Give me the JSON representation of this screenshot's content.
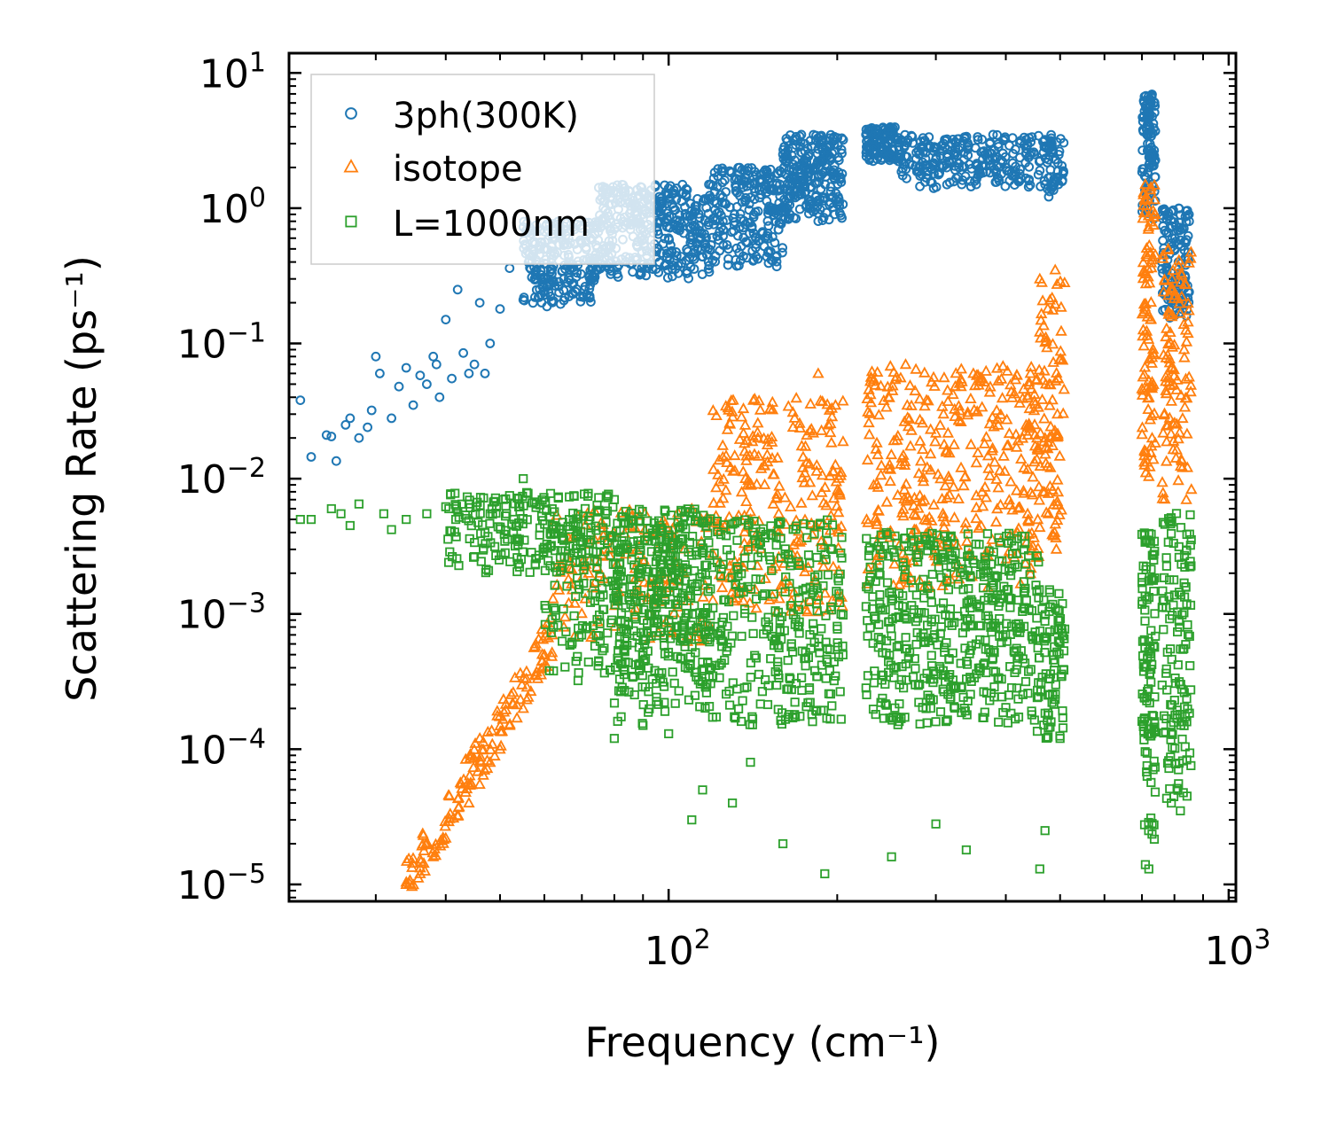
{
  "chart_data": {
    "type": "scatter",
    "title": "",
    "xlabel": "Frequency (cm⁻¹)",
    "ylabel": "Scattering Rate (ps⁻¹)",
    "xscale": "log",
    "yscale": "log",
    "xlim": [
      21,
      1030
    ],
    "ylim": [
      7.5e-06,
      14
    ],
    "x_ticks": [
      {
        "value": 100,
        "base": "10",
        "exp": "2"
      },
      {
        "value": 1000,
        "base": "10",
        "exp": "3"
      }
    ],
    "y_ticks": [
      {
        "value": 10,
        "base": "10",
        "exp": "1"
      },
      {
        "value": 1,
        "base": "10",
        "exp": "0"
      },
      {
        "value": 0.1,
        "base": "10",
        "exp": "−1"
      },
      {
        "value": 0.01,
        "base": "10",
        "exp": "−2"
      },
      {
        "value": 0.001,
        "base": "10",
        "exp": "−3"
      },
      {
        "value": 0.0001,
        "base": "10",
        "exp": "−4"
      },
      {
        "value": 1e-05,
        "base": "10",
        "exp": "−5"
      }
    ],
    "legend_position": "top-left",
    "series": [
      {
        "name": "3ph(300K)",
        "marker": "circle",
        "color": "#1f77b4",
        "points": [
          [
            22,
            0.038
          ],
          [
            23,
            0.0145
          ],
          [
            24.5,
            0.021
          ],
          [
            25,
            0.0205
          ],
          [
            25.5,
            0.0135
          ],
          [
            26.5,
            0.025
          ],
          [
            27,
            0.028
          ],
          [
            28,
            0.02
          ],
          [
            29,
            0.024
          ],
          [
            29.5,
            0.032
          ],
          [
            30,
            0.08
          ],
          [
            30.5,
            0.06
          ],
          [
            32,
            0.028
          ],
          [
            33,
            0.048
          ],
          [
            34,
            0.066
          ],
          [
            35,
            0.035
          ],
          [
            36,
            0.058
          ],
          [
            37,
            0.05
          ],
          [
            38,
            0.08
          ],
          [
            38.5,
            0.07
          ],
          [
            39,
            0.04
          ],
          [
            40,
            0.15
          ],
          [
            41,
            0.055
          ],
          [
            42,
            0.25
          ],
          [
            43,
            0.085
          ],
          [
            44,
            0.06
          ],
          [
            45,
            0.07
          ],
          [
            46,
            0.2
          ],
          [
            47,
            0.06
          ],
          [
            48,
            0.1
          ],
          [
            50,
            0.18
          ],
          [
            52,
            0.36
          ],
          [
            55,
            0.21
          ],
          [
            58,
            0.32
          ],
          [
            62,
            0.48
          ],
          [
            65,
            0.3
          ],
          [
            70,
            0.55
          ],
          [
            75,
            0.8
          ],
          [
            82,
            1.1
          ],
          [
            90,
            0.9
          ],
          [
            100,
            0.6
          ],
          [
            112,
            0.55
          ],
          [
            125,
            0.8
          ],
          [
            140,
            1.2
          ],
          [
            150,
            1.8
          ],
          [
            160,
            2.5
          ],
          [
            175,
            3
          ],
          [
            190,
            1.2
          ],
          [
            205,
            3.2
          ],
          [
            225,
            3.5
          ],
          [
            240,
            2.8
          ],
          [
            260,
            3.2
          ],
          [
            280,
            2.5
          ],
          [
            300,
            2.3
          ],
          [
            330,
            2
          ],
          [
            360,
            1.8
          ],
          [
            400,
            2
          ],
          [
            450,
            2.5
          ],
          [
            470,
            1.5
          ],
          [
            720,
            5
          ],
          [
            730,
            1.5
          ],
          [
            760,
            0.4
          ],
          [
            800,
            0.5
          ],
          [
            850,
            0.8
          ]
        ],
        "bands": [
          {
            "x": [
              55,
              75
            ],
            "y": [
              0.18,
              0.8
            ],
            "count": 240
          },
          {
            "x": [
              75,
              120
            ],
            "y": [
              0.3,
              1.5
            ],
            "count": 380
          },
          {
            "x": [
              120,
              160
            ],
            "y": [
              0.35,
              2.0
            ],
            "count": 220
          },
          {
            "x": [
              160,
              205
            ],
            "y": [
              0.8,
              3.5
            ],
            "count": 240
          },
          {
            "x": [
              225,
              260
            ],
            "y": [
              2.2,
              4.0
            ],
            "count": 120
          },
          {
            "x": [
              260,
              450
            ],
            "y": [
              1.4,
              3.5
            ],
            "count": 240
          },
          {
            "x": [
              455,
              510
            ],
            "y": [
              1.2,
              3.5
            ],
            "count": 60
          },
          {
            "x": [
              700,
              740
            ],
            "y": [
              0.8,
              7.0
            ],
            "count": 110
          },
          {
            "x": [
              760,
              850
            ],
            "y": [
              0.15,
              1.0
            ],
            "count": 130
          }
        ]
      },
      {
        "name": "isotope",
        "marker": "triangle",
        "color": "#ff7f0e",
        "points": [
          [
            34,
            1e-05
          ],
          [
            36,
            1.2e-05
          ],
          [
            38,
            1.6e-05
          ],
          [
            40,
            2.2e-05
          ],
          [
            42,
            3.2e-05
          ],
          [
            44,
            4e-05
          ],
          [
            46,
            5.5e-05
          ],
          [
            48,
            8e-05
          ],
          [
            50,
            0.0001
          ],
          [
            52,
            0.00015
          ],
          [
            55,
            0.0002
          ],
          [
            58,
            0.00035
          ],
          [
            60,
            0.0005
          ],
          [
            62,
            0.0007
          ],
          [
            65,
            0.0008
          ],
          [
            68,
            0.0012
          ],
          [
            72,
            0.002
          ],
          [
            78,
            0.0035
          ],
          [
            85,
            0.003
          ],
          [
            95,
            0.004
          ],
          [
            110,
            0.006
          ],
          [
            140,
            0.005
          ],
          [
            150,
            0.015
          ],
          [
            185,
            0.06
          ],
          [
            265,
            0.07
          ],
          [
            350,
            0.06
          ],
          [
            460,
            0.3
          ],
          [
            470,
            0.02
          ],
          [
            490,
            0.35
          ],
          [
            710,
            1.5
          ],
          [
            730,
            0.02
          ],
          [
            780,
            0.5
          ],
          [
            840,
            0.007
          ]
        ],
        "bands": [
          {
            "x": [
              34,
              62
            ],
            "y": [
              1e-05,
              0.0007
            ],
            "count": 140,
            "trend": 1.9
          },
          {
            "x": [
              62,
              120
            ],
            "y": [
              0.0006,
              0.006
            ],
            "count": 140
          },
          {
            "x": [
              120,
              205
            ],
            "y": [
              0.001,
              0.04
            ],
            "count": 260
          },
          {
            "x": [
              225,
              460
            ],
            "y": [
              0.0015,
              0.07
            ],
            "count": 380
          },
          {
            "x": [
              455,
              510
            ],
            "y": [
              0.003,
              0.3
            ],
            "count": 90
          },
          {
            "x": [
              700,
              740
            ],
            "y": [
              0.01,
              1.8
            ],
            "count": 100
          },
          {
            "x": [
              760,
              860
            ],
            "y": [
              0.006,
              0.5
            ],
            "count": 110
          }
        ]
      },
      {
        "name": "L=1000nm",
        "marker": "square",
        "color": "#2ca02c",
        "points": [
          [
            22,
            0.005
          ],
          [
            23,
            0.005
          ],
          [
            25,
            0.006
          ],
          [
            26,
            0.0055
          ],
          [
            27,
            0.0045
          ],
          [
            28,
            0.0065
          ],
          [
            31,
            0.0055
          ],
          [
            32,
            0.0042
          ],
          [
            34,
            0.005
          ],
          [
            37,
            0.0055
          ],
          [
            40,
            0.0062
          ],
          [
            44,
            0.0065
          ],
          [
            48,
            0.0055
          ],
          [
            52,
            0.0075
          ],
          [
            55,
            0.01
          ],
          [
            58,
            0.0065
          ],
          [
            62,
            0.0045
          ],
          [
            65,
            0.0035
          ],
          [
            70,
            0.0028
          ],
          [
            75,
            0.00045
          ],
          [
            80,
            0.00012
          ],
          [
            90,
            0.00015
          ],
          [
            100,
            0.00013
          ],
          [
            110,
            3e-05
          ],
          [
            115,
            5e-05
          ],
          [
            130,
            4e-05
          ],
          [
            140,
            8e-05
          ],
          [
            160,
            2e-05
          ],
          [
            190,
            1.2e-05
          ],
          [
            250,
            1.6e-05
          ],
          [
            300,
            2.8e-05
          ],
          [
            340,
            1.8e-05
          ],
          [
            460,
            1.3e-05
          ],
          [
            470,
            2.5e-05
          ],
          [
            500,
            0.00012
          ],
          [
            710,
            1.4e-05
          ],
          [
            720,
            1.3e-05
          ],
          [
            790,
            4e-05
          ],
          [
            820,
            3.5e-05
          ]
        ],
        "bands": [
          {
            "x": [
              40,
              80
            ],
            "y": [
              0.002,
              0.008
            ],
            "count": 200
          },
          {
            "x": [
              60,
              120
            ],
            "y": [
              0.0003,
              0.006
            ],
            "count": 340
          },
          {
            "x": [
              80,
              205
            ],
            "y": [
              0.00015,
              0.005
            ],
            "count": 520
          },
          {
            "x": [
              225,
              460
            ],
            "y": [
              0.00015,
              0.004
            ],
            "count": 500
          },
          {
            "x": [
              455,
              510
            ],
            "y": [
              0.00012,
              0.0016
            ],
            "count": 90
          },
          {
            "x": [
              700,
              740
            ],
            "y": [
              2e-05,
              0.004
            ],
            "count": 110
          },
          {
            "x": [
              760,
              860
            ],
            "y": [
              4e-05,
              0.006
            ],
            "count": 130
          }
        ]
      }
    ]
  }
}
